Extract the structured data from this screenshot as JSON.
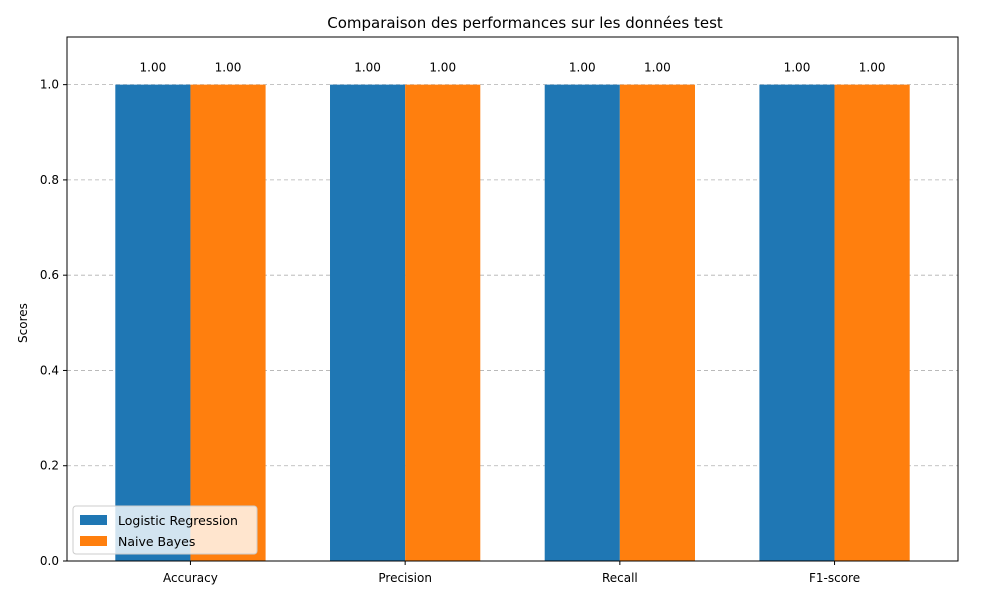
{
  "chart_data": {
    "type": "bar",
    "title": "Comparaison des performances sur les données test",
    "xlabel": "",
    "ylabel": "Scores",
    "categories": [
      "Accuracy",
      "Precision",
      "Recall",
      "F1-score"
    ],
    "series": [
      {
        "name": "Logistic Regression",
        "values": [
          1.0,
          1.0,
          1.0,
          1.0
        ],
        "labels": [
          "1.00",
          "1.00",
          "1.00",
          "1.00"
        ],
        "color": "#1f77b4"
      },
      {
        "name": "Naive Bayes",
        "values": [
          1.0,
          1.0,
          1.0,
          1.0
        ],
        "labels": [
          "1.00",
          "1.00",
          "1.00",
          "1.00"
        ],
        "color": "#ff7f0e"
      }
    ],
    "ylim": [
      0,
      1.1
    ],
    "yticks": [
      "0.0",
      "0.2",
      "0.4",
      "0.6",
      "0.8",
      "1.0"
    ],
    "ytick_values": [
      0,
      0.2,
      0.4,
      0.6,
      0.8,
      1.0
    ],
    "grid": "y, dashed",
    "legend_position": "lower-left"
  }
}
